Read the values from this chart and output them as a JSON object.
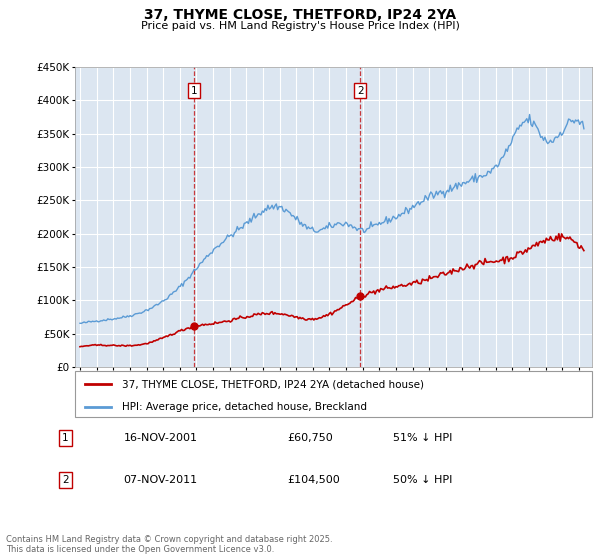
{
  "title": "37, THYME CLOSE, THETFORD, IP24 2YA",
  "subtitle": "Price paid vs. HM Land Registry's House Price Index (HPI)",
  "legend_line1": "37, THYME CLOSE, THETFORD, IP24 2YA (detached house)",
  "legend_line2": "HPI: Average price, detached house, Breckland",
  "sale1_date": "16-NOV-2001",
  "sale1_price": "£60,750",
  "sale1_hpi": "51% ↓ HPI",
  "sale2_date": "07-NOV-2011",
  "sale2_price": "£104,500",
  "sale2_hpi": "50% ↓ HPI",
  "footer": "Contains HM Land Registry data © Crown copyright and database right 2025.\nThis data is licensed under the Open Government Licence v3.0.",
  "hpi_color": "#5b9bd5",
  "price_color": "#c00000",
  "vline_color": "#c00000",
  "background_color": "#dce6f1",
  "ylim": [
    0,
    450000
  ],
  "yticks": [
    0,
    50000,
    100000,
    150000,
    200000,
    250000,
    300000,
    350000,
    400000,
    450000
  ],
  "sale1_year": 2001.875,
  "sale2_year": 2011.854,
  "box_color": "#c00000"
}
